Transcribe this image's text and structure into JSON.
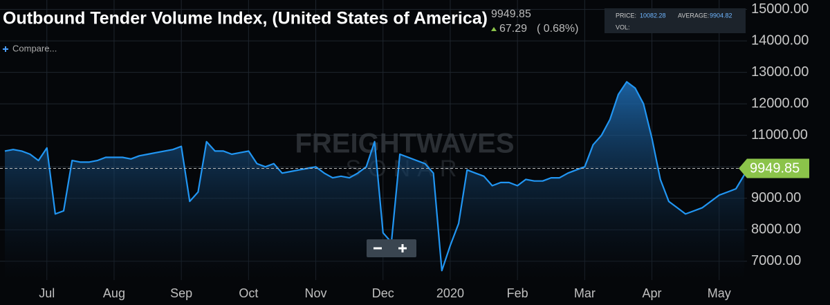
{
  "chart_data": {
    "type": "area",
    "title": "Outbound Tender Volume Index, (United States of America)",
    "last_value": 9949.85,
    "change": "67.29",
    "change_pct": "( 0.68%)",
    "compare_label": "Compare...",
    "info": {
      "price_label": "PRICE:",
      "price": "10082.28",
      "average_label": "AVERAGE:",
      "average": "9904.82",
      "vol_label": "VOL:"
    },
    "watermark": [
      "FREIGHTWAVES",
      "SONAR"
    ],
    "color": "#2196f3",
    "categories": [
      null,
      null,
      null,
      null,
      null,
      "Jul",
      null,
      null,
      null,
      null,
      null,
      null,
      null,
      "Aug",
      null,
      null,
      null,
      null,
      null,
      null,
      null,
      "Sep",
      null,
      null,
      null,
      null,
      null,
      null,
      null,
      "Oct",
      null,
      null,
      null,
      null,
      null,
      null,
      null,
      "Nov",
      null,
      null,
      null,
      null,
      null,
      null,
      null,
      "Dec",
      null,
      null,
      null,
      null,
      null,
      null,
      null,
      "2020",
      null,
      null,
      null,
      null,
      null,
      null,
      null,
      "Feb",
      null,
      null,
      null,
      null,
      null,
      null,
      null,
      "Mar",
      null,
      null,
      null,
      null,
      null,
      null,
      null,
      "Apr",
      null,
      null,
      null,
      null,
      null,
      null,
      null,
      "May",
      null,
      null,
      null
    ],
    "values": [
      10500,
      10550,
      10500,
      10400,
      10200,
      10600,
      8500,
      8600,
      10200,
      10150,
      10150,
      10200,
      10300,
      10300,
      10300,
      10250,
      10350,
      10400,
      10450,
      10500,
      10550,
      10650,
      8900,
      9200,
      10800,
      10500,
      10500,
      10400,
      10450,
      10500,
      10100,
      10000,
      10100,
      9800,
      9850,
      9900,
      9950,
      10000,
      9800,
      9650,
      9700,
      9650,
      9800,
      10000,
      10800,
      7900,
      7600,
      10400,
      10300,
      10200,
      10100,
      9800,
      6700,
      7500,
      8200,
      9900,
      9800,
      9700,
      9400,
      9500,
      9500,
      9400,
      9600,
      9550,
      9550,
      9650,
      9650,
      9800,
      9900,
      10000,
      10700,
      11000,
      11500,
      12300,
      12700,
      12500,
      12000,
      10900,
      9600,
      8900,
      8700,
      8500,
      8600,
      8700,
      8900,
      9100,
      9200,
      9300,
      9750
    ],
    "ylim": [
      6400,
      15300
    ],
    "yticks": [
      {
        "value": 7000,
        "label": "7000.00"
      },
      {
        "value": 8000,
        "label": "8000.00"
      },
      {
        "value": 9000,
        "label": "9000.00"
      },
      {
        "value": 10000,
        "label": "10000.00"
      },
      {
        "value": 11000,
        "label": "11000.00"
      },
      {
        "value": 12000,
        "label": "12000.00"
      },
      {
        "value": 13000,
        "label": "13000.00"
      },
      {
        "value": 14000,
        "label": "14000.00"
      },
      {
        "value": 15000,
        "label": "15000.00"
      }
    ],
    "grid": true
  }
}
